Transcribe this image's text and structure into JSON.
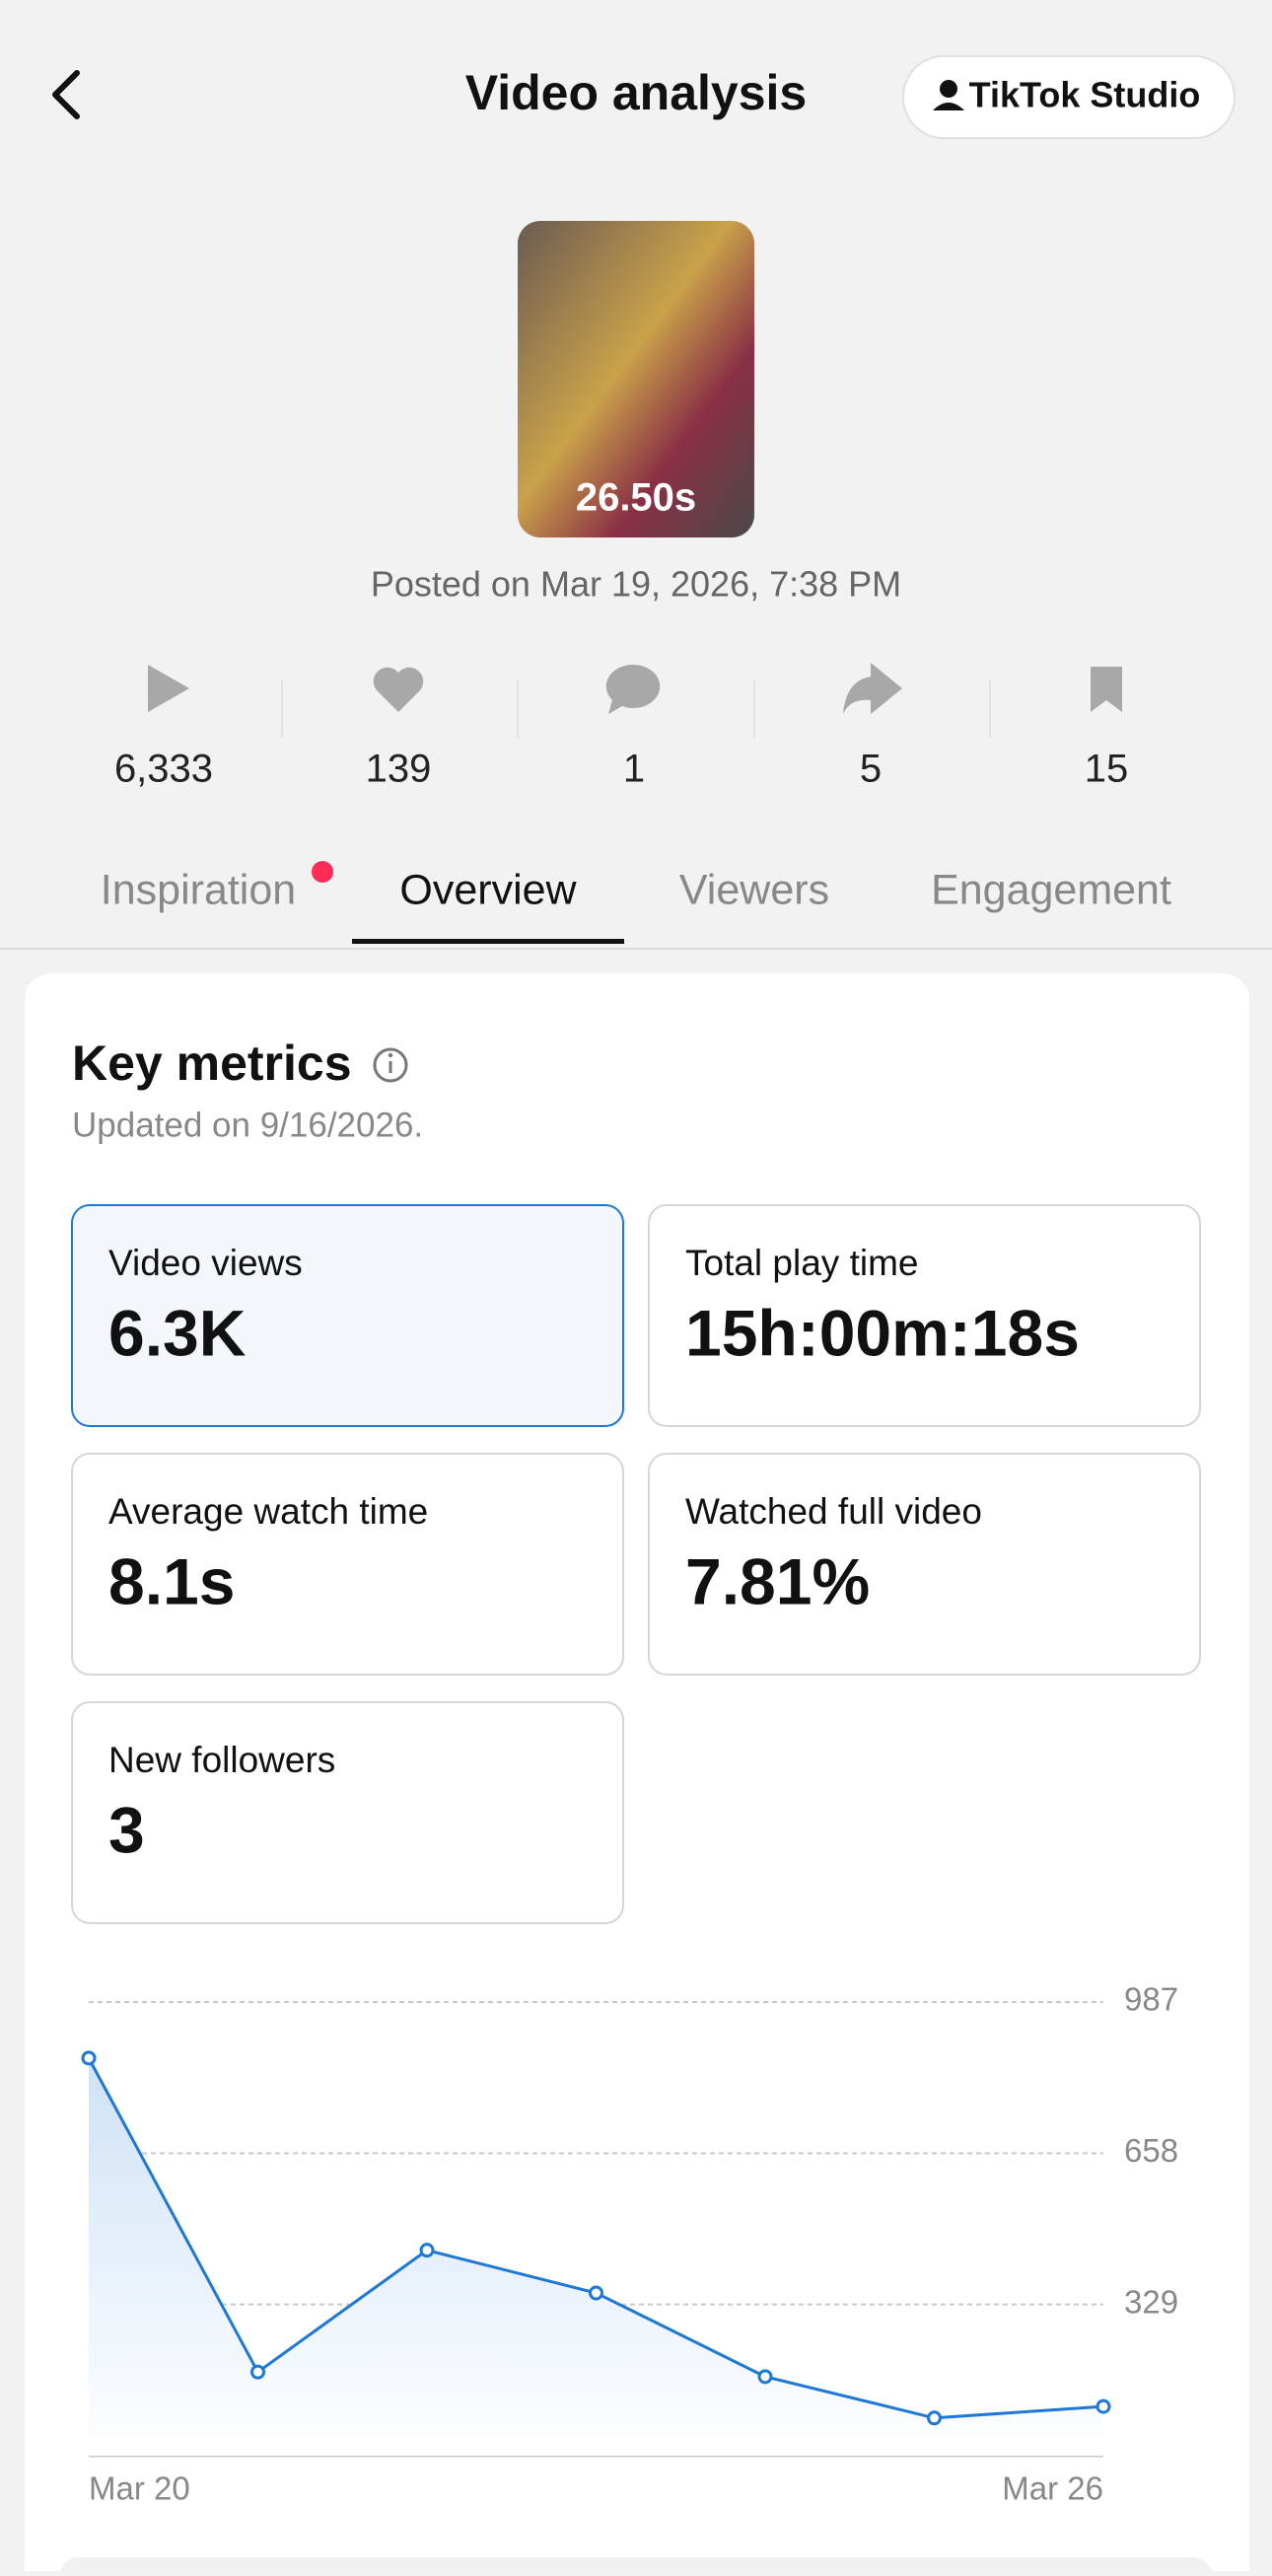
{
  "header": {
    "title": "Video analysis",
    "studio_button": "TikTok Studio"
  },
  "video": {
    "duration": "26.50s",
    "posted": "Posted on Mar 19, 2026, 7:38 PM"
  },
  "stats": [
    "6,333",
    "139",
    "1",
    "5",
    "15"
  ],
  "tabs": [
    "Inspiration",
    "Overview",
    "Viewers",
    "Engagement"
  ],
  "active_tab": 1,
  "key_metrics": {
    "title": "Key metrics",
    "updated": "Updated on 9/16/2026.",
    "selected": 0,
    "metrics": [
      {
        "label": "Video views",
        "value": "6.3K"
      },
      {
        "label": "Total play time",
        "value": "15h:00m:18s"
      },
      {
        "label": "Average watch time",
        "value": "8.1s"
      },
      {
        "label": "Watched full video",
        "value": "7.81%"
      },
      {
        "label": "New followers",
        "value": "3"
      }
    ]
  },
  "chart": {
    "type": "line",
    "categories": [
      "Mar 20",
      null,
      null,
      null,
      null,
      null,
      "Mar 26"
    ],
    "values": [
      865,
      182,
      447,
      354,
      172,
      82,
      107
    ],
    "ylim": [
      0,
      987
    ],
    "yticks": [
      329,
      658,
      987
    ],
    "color": "#1e78d6",
    "grid": true
  }
}
